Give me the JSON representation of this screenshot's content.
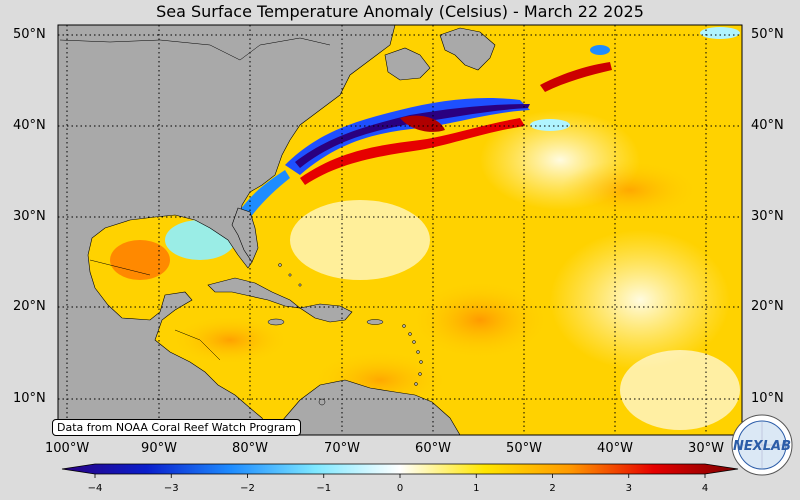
{
  "title": "Sea Surface Temperature Anomaly (Celsius) - March 22 2025",
  "credit": "Data from NOAA Coral Reef Watch Program",
  "logo_text": "NEXLAB",
  "lat_labels": [
    "50°N",
    "40°N",
    "30°N",
    "20°N",
    "10°N"
  ],
  "lon_labels": [
    "100°W",
    "90°W",
    "80°W",
    "70°W",
    "60°W",
    "50°W",
    "40°W",
    "30°W"
  ],
  "colorbar": {
    "ticks": [
      "−4",
      "−3",
      "−2",
      "−1",
      "0",
      "1",
      "2",
      "3",
      "4"
    ],
    "range": [
      -4,
      4
    ],
    "colors": [
      "#2a0080",
      "#0a1ecc",
      "#1e8cff",
      "#7fe8ff",
      "#ffffff",
      "#ffe600",
      "#ff9a00",
      "#e60000",
      "#7a0000"
    ]
  },
  "colors": {
    "land": "#a9a9a9",
    "warm": "#ffd200",
    "frame": "#dcdcdc"
  }
}
